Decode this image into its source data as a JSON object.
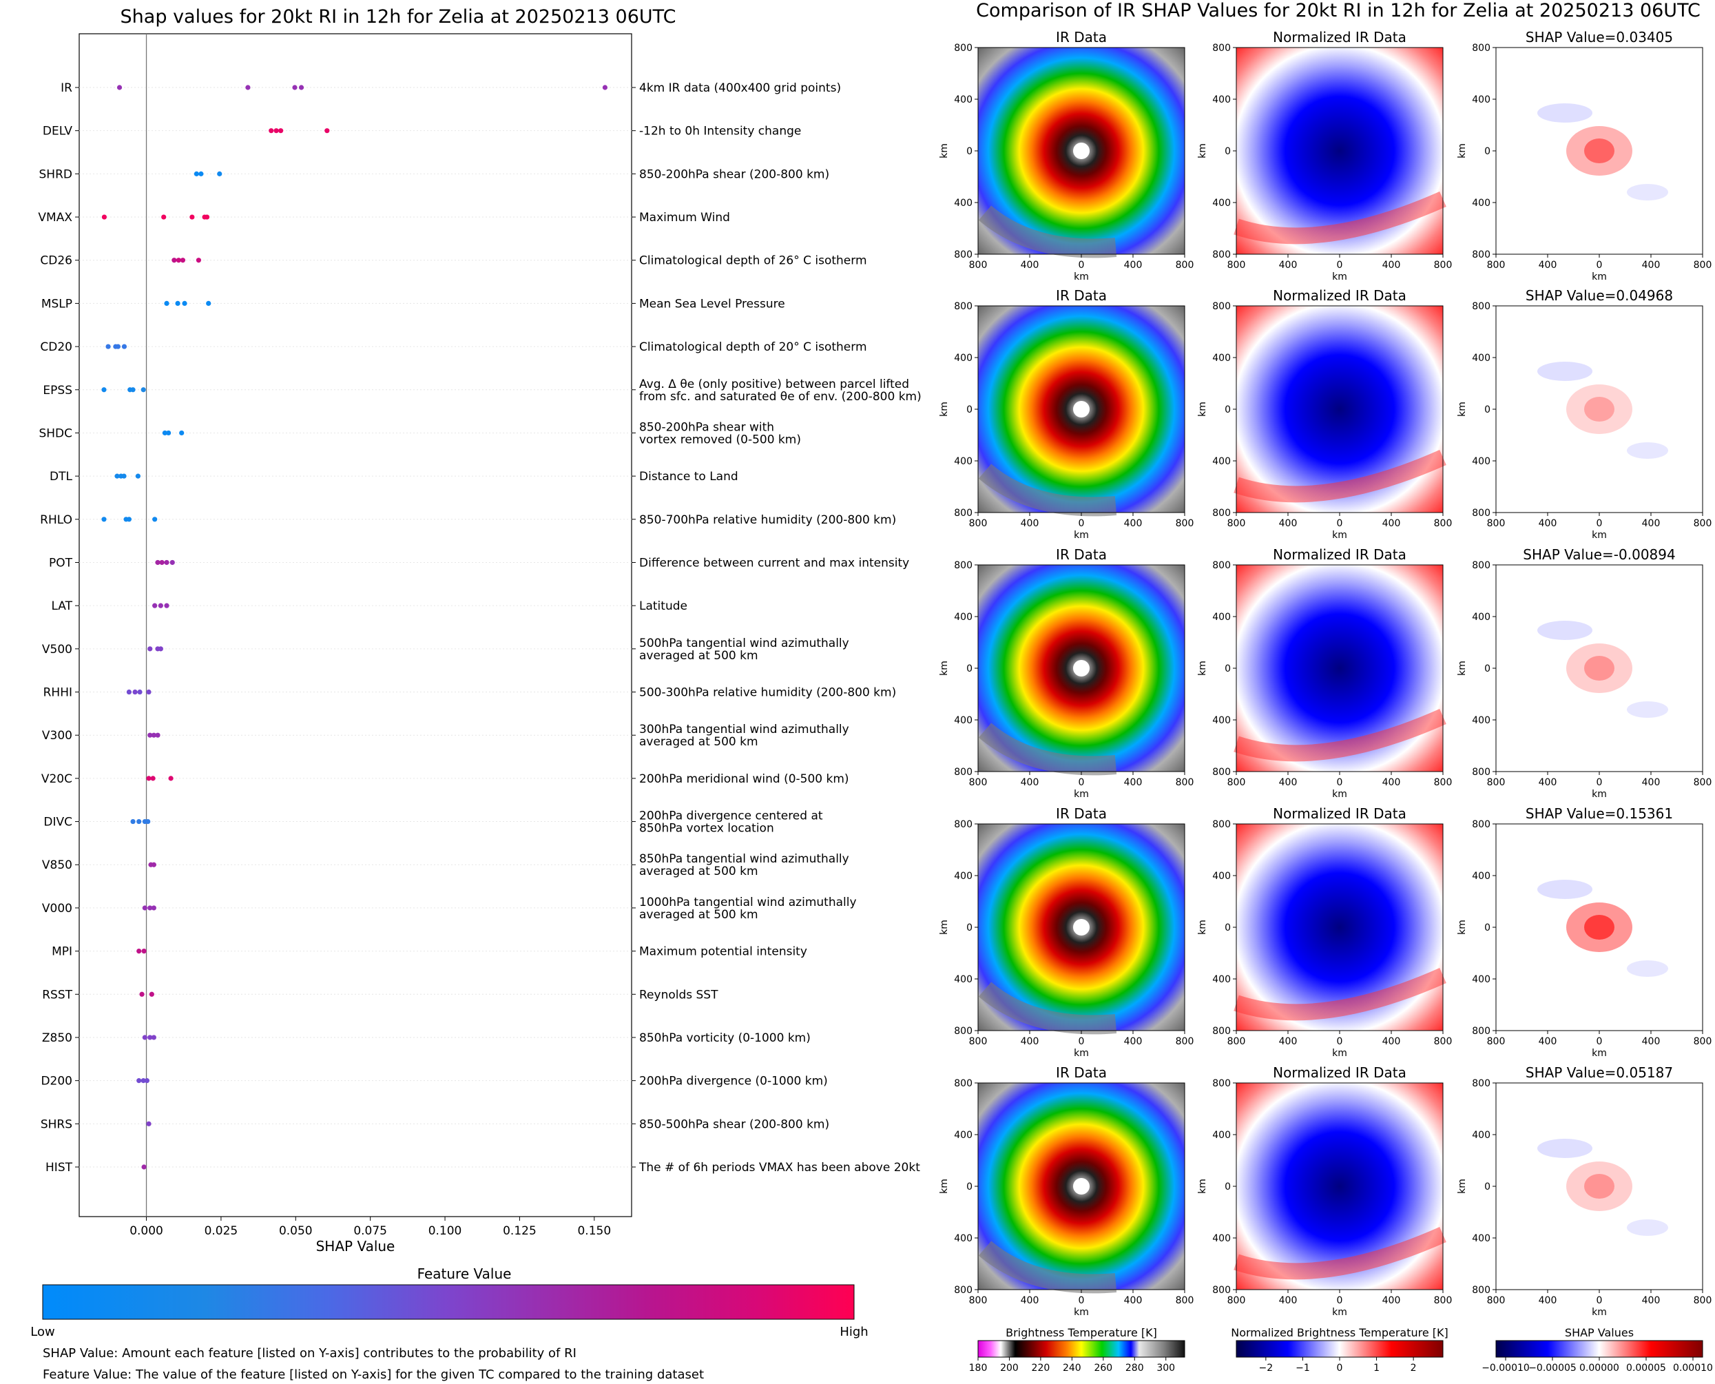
{
  "chart_data": [
    {
      "type": "scatter",
      "title": "Shap values for 20kt RI in 12h for Zelia at 20250213 06UTC",
      "xlabel": "SHAP Value",
      "xlim": [
        -0.0225,
        0.1625
      ],
      "xticks": [
        0.0,
        0.025,
        0.05,
        0.075,
        0.1,
        0.125,
        0.15
      ],
      "xtick_labels": [
        "0.000",
        "0.025",
        "0.050",
        "0.075",
        "0.100",
        "0.125",
        "0.150"
      ],
      "features": [
        {
          "name": "IR",
          "desc": "4km IR data (400x400 grid points)",
          "shap": [
            -0.009,
            0.034,
            0.0497,
            0.0519,
            0.1536
          ],
          "fv": [
            0.55,
            0.55,
            0.55,
            0.55,
            0.55
          ]
        },
        {
          "name": "DELV",
          "desc": "-12h to 0h Intensity change",
          "shap": [
            0.0418,
            0.0435,
            0.045,
            0.0605
          ],
          "fv": [
            0.92,
            0.92,
            0.92,
            0.92
          ]
        },
        {
          "name": "SHRD",
          "desc": "850-200hPa shear (200-800 km)",
          "shap": [
            0.0168,
            0.0183,
            0.0245
          ],
          "fv": [
            0.05,
            0.05,
            0.08
          ]
        },
        {
          "name": "VMAX",
          "desc": "Maximum Wind",
          "shap": [
            -0.0141,
            0.0058,
            0.0153,
            0.0195,
            0.0203
          ],
          "fv": [
            0.95,
            0.95,
            0.95,
            0.95,
            0.95
          ]
        },
        {
          "name": "CD26",
          "desc": "Climatological depth of 26° C isotherm",
          "shap": [
            0.0093,
            0.0108,
            0.0122,
            0.0175
          ],
          "fv": [
            0.75,
            0.8,
            0.78,
            0.8
          ]
        },
        {
          "name": "MSLP",
          "desc": "Mean Sea Level Pressure",
          "shap": [
            0.0068,
            0.0105,
            0.0128,
            0.0208
          ],
          "fv": [
            0.05,
            0.05,
            0.05,
            0.05
          ]
        },
        {
          "name": "CD20",
          "desc": "Climatological depth of 20° C isotherm",
          "shap": [
            -0.0128,
            -0.0103,
            -0.0095,
            -0.0074
          ],
          "fv": [
            0.22,
            0.22,
            0.22,
            0.22
          ]
        },
        {
          "name": "EPSS",
          "desc": "Avg. Δ θe (only positive) between parcel lifted",
          "desc2": "from sfc. and saturated θe of env. (200-800 km)",
          "shap": [
            -0.0142,
            -0.0055,
            -0.0045,
            -0.001
          ],
          "fv": [
            0.08,
            0.1,
            0.1,
            0.14
          ]
        },
        {
          "name": "SHDC",
          "desc": "850-200hPa shear with",
          "desc2": "vortex removed (0-500 km)",
          "shap": [
            0.0062,
            0.0074,
            0.0118
          ],
          "fv": [
            0.06,
            0.06,
            0.06
          ]
        },
        {
          "name": "DTL",
          "desc": "Distance to Land",
          "shap": [
            -0.0098,
            -0.0085,
            -0.0075,
            -0.0028
          ],
          "fv": [
            0.1,
            0.1,
            0.1,
            0.1
          ]
        },
        {
          "name": "RHLO",
          "desc": "850-700hPa relative humidity (200-800 km)",
          "shap": [
            -0.0142,
            -0.0068,
            -0.0058,
            0.0028
          ],
          "fv": [
            0.08,
            0.08,
            0.08,
            0.08
          ]
        },
        {
          "name": "POT",
          "desc": "Difference between current and max intensity",
          "shap": [
            0.0038,
            0.0052,
            0.0068,
            0.0087
          ],
          "fv": [
            0.62,
            0.64,
            0.6,
            0.55
          ]
        },
        {
          "name": "LAT",
          "desc": "Latitude",
          "shap": [
            0.0028,
            0.0048,
            0.0068
          ],
          "fv": [
            0.55,
            0.55,
            0.55
          ]
        },
        {
          "name": "V500",
          "desc": "500hPa tangential wind azimuthally",
          "desc2": "averaged at 500 km",
          "shap": [
            0.0012,
            0.0038,
            0.0048
          ],
          "fv": [
            0.45,
            0.45,
            0.45
          ]
        },
        {
          "name": "RHHI",
          "desc": "500-300hPa relative humidity (200-800 km)",
          "shap": [
            -0.0058,
            -0.0038,
            -0.0022,
            0.0008
          ],
          "fv": [
            0.4,
            0.42,
            0.4,
            0.42
          ]
        },
        {
          "name": "V300",
          "desc": "300hPa tangential wind azimuthally",
          "desc2": "averaged at 500 km",
          "shap": [
            0.0012,
            0.0025,
            0.0038
          ],
          "fv": [
            0.55,
            0.55,
            0.55
          ]
        },
        {
          "name": "V20C",
          "desc": "200hPa meridional wind (0-500 km)",
          "shap": [
            0.0008,
            0.0022,
            0.0082
          ],
          "fv": [
            0.88,
            0.88,
            0.88
          ]
        },
        {
          "name": "DIVC",
          "desc": "200hPa divergence centered at",
          "desc2": "850hPa vortex location",
          "shap": [
            -0.0045,
            -0.0025,
            -0.0005,
            0.0005
          ],
          "fv": [
            0.2,
            0.2,
            0.2,
            0.2
          ]
        },
        {
          "name": "V850",
          "desc": "850hPa tangential wind azimuthally",
          "desc2": "averaged at 500 km",
          "shap": [
            0.0015,
            0.0025
          ],
          "fv": [
            0.6,
            0.6
          ]
        },
        {
          "name": "V000",
          "desc": "1000hPa tangential wind azimuthally",
          "desc2": "averaged at 500 km",
          "shap": [
            -0.0005,
            0.0012,
            0.0025
          ],
          "fv": [
            0.55,
            0.55,
            0.55
          ]
        },
        {
          "name": "MPI",
          "desc": "Maximum potential intensity",
          "shap": [
            -0.0025,
            -0.0008
          ],
          "fv": [
            0.75,
            0.75
          ]
        },
        {
          "name": "RSST",
          "desc": "Reynolds SST",
          "shap": [
            -0.0015,
            0.0018
          ],
          "fv": [
            0.75,
            0.75
          ]
        },
        {
          "name": "Z850",
          "desc": "850hPa vorticity (0-1000 km)",
          "shap": [
            -0.0005,
            0.0012,
            0.0025
          ],
          "fv": [
            0.45,
            0.45,
            0.45
          ]
        },
        {
          "name": "D200",
          "desc": "200hPa divergence (0-1000 km)",
          "shap": [
            -0.0025,
            -0.001,
            0.0002
          ],
          "fv": [
            0.4,
            0.4,
            0.4
          ]
        },
        {
          "name": "SHRS",
          "desc": "850-500hPa shear (200-800 km)",
          "shap": [
            0.0008
          ],
          "fv": [
            0.45
          ]
        },
        {
          "name": "HIST",
          "desc": "The # of 6h periods VMAX has been above 20kt",
          "shap": [
            -0.0008
          ],
          "fv": [
            0.6
          ]
        }
      ]
    },
    {
      "type": "heatmap",
      "title": "Comparison of IR SHAP Values for 20kt RI in 12h for Zelia at 20250213 06UTC",
      "panel_titles": [
        "IR Data",
        "Normalized IR Data"
      ],
      "shap_titles": [
        "SHAP Value=0.03405",
        "SHAP Value=0.04968",
        "SHAP Value=-0.00894",
        "SHAP Value=0.15361",
        "SHAP Value=0.05187"
      ],
      "axis_label": "km",
      "ticks": [
        "800",
        "400",
        "0",
        "400",
        "800"
      ],
      "colorbars": [
        {
          "label": "Brightness Temperature [K]",
          "ticks": [
            "180",
            "200",
            "220",
            "240",
            "260",
            "280",
            "300"
          ]
        },
        {
          "label": "Normalized Brightness Temperature [K]",
          "ticks": [
            "−2",
            "−1",
            "0",
            "1",
            "2"
          ]
        },
        {
          "label": "SHAP Values",
          "ticks": [
            "−0.00010",
            "−0.00005",
            "0.00000",
            "0.00005",
            "0.00010"
          ]
        }
      ]
    }
  ],
  "legend": {
    "title": "Feature Value",
    "low": "Low",
    "high": "High",
    "colors": [
      "#008bfb",
      "#1e88e5",
      "#4a6ae6",
      "#7d45cd",
      "#9a2eaf",
      "#b8158f",
      "#d80877",
      "#ff0052"
    ]
  },
  "notes": {
    "shap": "SHAP Value: Amount each feature [listed on Y-axis] contributes to the probability of RI",
    "feature": "Feature Value: The value of the feature [listed on Y-axis] for the given TC compared to the training dataset"
  }
}
